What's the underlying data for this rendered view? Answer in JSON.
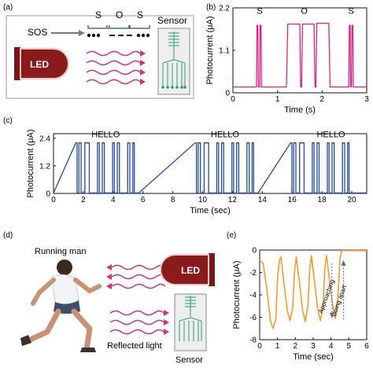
{
  "panels": {
    "a": {
      "tag": "(a)",
      "sos_label": "SOS",
      "letters": [
        "S",
        "O",
        "S"
      ],
      "led_label": "LED",
      "sensor_label": "Sensor"
    },
    "b": {
      "tag": "(b)"
    },
    "c": {
      "tag": "(c)"
    },
    "d": {
      "tag": "(d)",
      "running_label": "Running man",
      "led_label": "LED",
      "sensor_label": "Sensor",
      "reflected_label": "Reflected light"
    },
    "e": {
      "tag": "(e)"
    }
  },
  "colors": {
    "pink": "#e0218a",
    "blue": "#1f4aa8",
    "orange": "#f39c2a",
    "led": "#8b1a1a",
    "wave": "#d6336c",
    "sensor_green": "#2e9e6b"
  },
  "chart_data": [
    {
      "id": "b",
      "type": "line",
      "xlabel": "Time (s)",
      "ylabel": "Photocurrent (μA)",
      "xlim": [
        0,
        3
      ],
      "ylim": [
        0,
        2.2
      ],
      "xticks": [
        0,
        1,
        2,
        3
      ],
      "yticks": [
        0,
        1.1,
        2.2
      ],
      "annotations": [
        {
          "text": "S",
          "x": 0.6,
          "y": 2.05
        },
        {
          "text": "O",
          "x": 1.6,
          "y": 2.05
        },
        {
          "text": "S",
          "x": 2.65,
          "y": 2.05
        }
      ],
      "points": [
        [
          0,
          0.15
        ],
        [
          0.53,
          0.15
        ],
        [
          0.54,
          1.75
        ],
        [
          0.56,
          1.75
        ],
        [
          0.57,
          0.15
        ],
        [
          0.6,
          0.15
        ],
        [
          0.61,
          1.75
        ],
        [
          0.63,
          1.75
        ],
        [
          0.64,
          0.15
        ],
        [
          1.2,
          0.15
        ],
        [
          1.23,
          1.78
        ],
        [
          1.5,
          1.78
        ],
        [
          1.52,
          0.15
        ],
        [
          1.54,
          0.15
        ],
        [
          1.56,
          1.78
        ],
        [
          1.82,
          1.78
        ],
        [
          1.84,
          0.15
        ],
        [
          1.86,
          0.15
        ],
        [
          1.88,
          1.8
        ],
        [
          2.15,
          1.8
        ],
        [
          2.18,
          0.15
        ],
        [
          2.6,
          0.15
        ],
        [
          2.61,
          1.75
        ],
        [
          2.63,
          1.75
        ],
        [
          2.64,
          0.15
        ],
        [
          2.66,
          0.15
        ],
        [
          2.67,
          1.75
        ],
        [
          2.69,
          1.75
        ],
        [
          2.7,
          0.15
        ],
        [
          3,
          0.15
        ]
      ]
    },
    {
      "id": "c",
      "type": "line",
      "xlabel": "Time (sec)",
      "ylabel": "Photocurrent (μA)",
      "xlim": [
        0,
        21
      ],
      "ylim": [
        0,
        2.6
      ],
      "xticks": [
        0,
        2,
        4,
        6,
        8,
        10,
        12,
        14,
        16,
        18,
        20
      ],
      "yticks": [
        0,
        1.2,
        2.4
      ],
      "annotations": [
        {
          "text": "HELLO",
          "x": 3.5,
          "y": 2.45
        },
        {
          "text": "HELLO",
          "x": 11.5,
          "y": 2.45
        },
        {
          "text": "HELLO",
          "x": 18.6,
          "y": 2.45
        }
      ],
      "burst_starts": [
        1.5,
        9.5,
        15.9
      ],
      "burst_length": 3.6,
      "pulse_high": 2.2,
      "baseline": 0.02
    },
    {
      "id": "e",
      "type": "line",
      "xlabel": "Time (sec)",
      "ylabel": "Photocurrent (μA)",
      "xlim": [
        0,
        6
      ],
      "ylim": [
        -8,
        0
      ],
      "xticks": [
        0,
        1,
        2,
        3,
        4,
        5,
        6
      ],
      "yticks": [
        -8,
        -6,
        -4,
        -2,
        0
      ],
      "annotations": [
        {
          "text": "Approaching",
          "x": 3.85,
          "y": -4.2
        },
        {
          "text": "Going apart",
          "x": 4.55,
          "y": -4.6
        }
      ],
      "points": [
        [
          0,
          -0.9
        ],
        [
          0.2,
          -1.2
        ],
        [
          0.4,
          -3.5
        ],
        [
          0.6,
          -6.3
        ],
        [
          0.75,
          -7.0
        ],
        [
          0.9,
          -6.2
        ],
        [
          1.0,
          -2.5
        ],
        [
          1.1,
          -1.0
        ],
        [
          1.2,
          -0.6
        ],
        [
          1.35,
          -2.8
        ],
        [
          1.55,
          -5.4
        ],
        [
          1.7,
          -6.3
        ],
        [
          1.85,
          -5.2
        ],
        [
          1.95,
          -2.0
        ],
        [
          2.05,
          -0.6
        ],
        [
          2.2,
          -2.5
        ],
        [
          2.4,
          -5.3
        ],
        [
          2.55,
          -6.4
        ],
        [
          2.7,
          -5.0
        ],
        [
          2.8,
          -1.8
        ],
        [
          2.9,
          -0.5
        ],
        [
          3.05,
          -2.5
        ],
        [
          3.25,
          -5.2
        ],
        [
          3.4,
          -6.3
        ],
        [
          3.55,
          -5.0
        ],
        [
          3.65,
          -1.8
        ],
        [
          3.75,
          -0.5
        ],
        [
          3.9,
          -2.5
        ],
        [
          4.1,
          -5.0
        ],
        [
          4.25,
          -6.1
        ],
        [
          4.4,
          -4.0
        ],
        [
          4.5,
          -0.8
        ],
        [
          4.6,
          -0.05
        ],
        [
          6,
          -0.05
        ]
      ]
    }
  ]
}
